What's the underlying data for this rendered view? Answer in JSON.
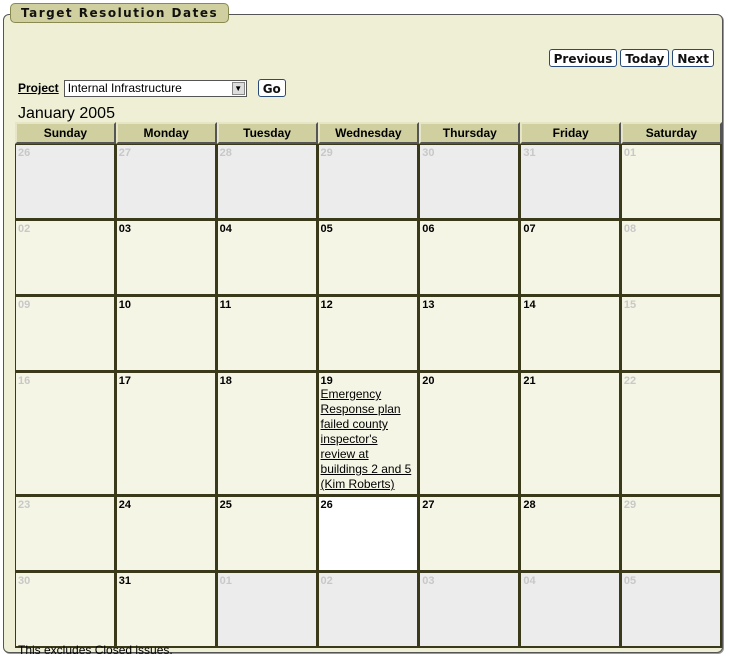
{
  "panel_title": "Target Resolution Dates",
  "nav": {
    "previous": "Previous",
    "today": "Today",
    "next": "Next"
  },
  "project": {
    "label": "Project",
    "selected": "Internal Infrastructure",
    "go": "Go"
  },
  "month_title": "January 2005",
  "weekdays": [
    "Sunday",
    "Monday",
    "Tuesday",
    "Wednesday",
    "Thursday",
    "Friday",
    "Saturday"
  ],
  "weeks": [
    [
      {
        "d": "26",
        "o": 1
      },
      {
        "d": "27",
        "o": 1
      },
      {
        "d": "28",
        "o": 1
      },
      {
        "d": "29",
        "o": 1
      },
      {
        "d": "30",
        "o": 1
      },
      {
        "d": "31",
        "o": 1
      },
      {
        "d": "01",
        "w": 1
      }
    ],
    [
      {
        "d": "02",
        "w": 1
      },
      {
        "d": "03"
      },
      {
        "d": "04"
      },
      {
        "d": "05"
      },
      {
        "d": "06"
      },
      {
        "d": "07"
      },
      {
        "d": "08",
        "w": 1
      }
    ],
    [
      {
        "d": "09",
        "w": 1
      },
      {
        "d": "10"
      },
      {
        "d": "11"
      },
      {
        "d": "12"
      },
      {
        "d": "13"
      },
      {
        "d": "14"
      },
      {
        "d": "15",
        "w": 1
      }
    ],
    [
      {
        "d": "16",
        "w": 1
      },
      {
        "d": "17"
      },
      {
        "d": "18"
      },
      {
        "d": "19",
        "issues": [
          "Emergency Response plan failed county inspector's review at buildings 2 and 5 (Kim Roberts)"
        ]
      },
      {
        "d": "20"
      },
      {
        "d": "21"
      },
      {
        "d": "22",
        "w": 1
      }
    ],
    [
      {
        "d": "23",
        "w": 1
      },
      {
        "d": "24"
      },
      {
        "d": "25"
      },
      {
        "d": "26",
        "t": 1
      },
      {
        "d": "27"
      },
      {
        "d": "28"
      },
      {
        "d": "29",
        "w": 1
      }
    ],
    [
      {
        "d": "30",
        "w": 1
      },
      {
        "d": "31"
      },
      {
        "d": "01",
        "o": 1
      },
      {
        "d": "02",
        "o": 1
      },
      {
        "d": "03",
        "o": 1
      },
      {
        "d": "04",
        "o": 1
      },
      {
        "d": "05",
        "o": 1
      }
    ]
  ],
  "footer": "This excludes Closed issues.",
  "colors": {
    "header": "#cfcf9f",
    "panel": "#efefd6",
    "other_month": "#ececec",
    "today": "#ffffff"
  }
}
